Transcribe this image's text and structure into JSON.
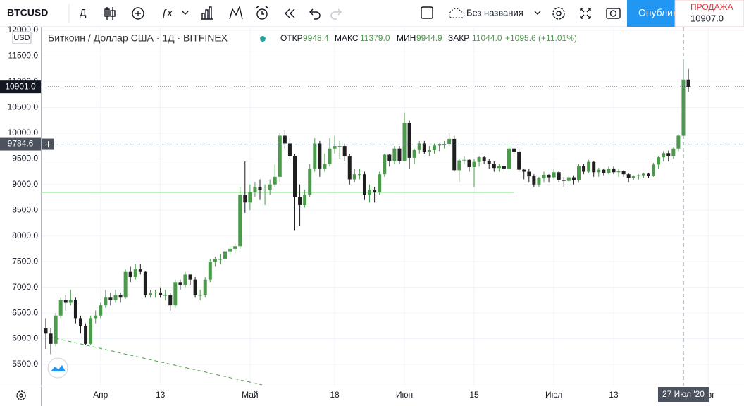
{
  "toolbar": {
    "symbol": "BTCUSD",
    "interval": "Д",
    "layout_name": "Без названия",
    "publish": "Опубликовать",
    "sell_label": "ПРОДАЖА",
    "sell_price": "10907.0"
  },
  "chart_data": {
    "type": "candlestick",
    "title": "Биткоин / Доллар США · 1Д · BITFINEX",
    "currency": "USD",
    "legend": {
      "open_label": "ОТКР",
      "open": "9948.4",
      "high_label": "МАКС",
      "high": "11379.0",
      "low_label": "МИН",
      "low": "9944.9",
      "close_label": "ЗАКР",
      "close": "11044.0",
      "change": "+1095.6 (+11.01%)"
    },
    "up_color": "#4c9a4c",
    "down_color": "#1f1f1f",
    "ylim": [
      5150,
      12020
    ],
    "yticks": [
      {
        "value": 5500,
        "label": "5500.0"
      },
      {
        "value": 6000,
        "label": "6000.0"
      },
      {
        "value": 6500,
        "label": "6500.0"
      },
      {
        "value": 7000,
        "label": "7000.0"
      },
      {
        "value": 7500,
        "label": "7500.0"
      },
      {
        "value": 8000,
        "label": "8000.0"
      },
      {
        "value": 8500,
        "label": "8500.0"
      },
      {
        "value": 9000,
        "label": "9000.0"
      },
      {
        "value": 9500,
        "label": "9500.0"
      },
      {
        "value": 10000,
        "label": "10000.0"
      },
      {
        "value": 10500,
        "label": "10500.0"
      },
      {
        "value": 11000,
        "label": "11000.0"
      },
      {
        "value": 11500,
        "label": "11500.0"
      },
      {
        "value": 12000,
        "label": "12000.0"
      }
    ],
    "xticks": [
      {
        "value": 11,
        "label": "Апр"
      },
      {
        "value": 23,
        "label": "13"
      },
      {
        "value": 41,
        "label": "Май"
      },
      {
        "value": 58,
        "label": "18"
      },
      {
        "value": 72,
        "label": "Июн"
      },
      {
        "value": 86,
        "label": "15"
      },
      {
        "value": 102,
        "label": "Июл"
      },
      {
        "value": 114,
        "label": "13"
      },
      {
        "value": 133,
        "label": "Авг"
      }
    ],
    "grid": true,
    "last_price": {
      "value": 10901.0,
      "label": "10901.0"
    },
    "level_line": 8850,
    "crosshair": {
      "x": 128,
      "x_label": "27 Июл '20",
      "y": {
        "value": 9784.6,
        "label": "9784.6"
      }
    },
    "ohlc": [
      [
        6200,
        6400,
        5800,
        6100
      ],
      [
        6100,
        6200,
        5700,
        5900
      ],
      [
        5900,
        6500,
        5850,
        6450
      ],
      [
        6450,
        6800,
        6400,
        6750
      ],
      [
        6750,
        6850,
        6550,
        6700
      ],
      [
        6700,
        6950,
        6650,
        6750
      ],
      [
        6750,
        6800,
        6300,
        6400
      ],
      [
        6400,
        6450,
        6100,
        6250
      ],
      [
        6250,
        6300,
        5880,
        5900
      ],
      [
        5900,
        6450,
        5880,
        6400
      ],
      [
        6400,
        6550,
        6300,
        6450
      ],
      [
        6450,
        6700,
        6400,
        6650
      ],
      [
        6650,
        6950,
        6600,
        6800
      ],
      [
        6800,
        6900,
        6650,
        6750
      ],
      [
        6750,
        6950,
        6700,
        6850
      ],
      [
        6850,
        6900,
        6700,
        6800
      ],
      [
        6800,
        7350,
        6780,
        7300
      ],
      [
        7300,
        7400,
        7100,
        7200
      ],
      [
        7200,
        7450,
        7150,
        7350
      ],
      [
        7350,
        7450,
        7250,
        7300
      ],
      [
        7300,
        7320,
        6800,
        6850
      ],
      [
        6850,
        6950,
        6800,
        6900
      ],
      [
        6900,
        6950,
        6800,
        6900
      ],
      [
        6900,
        7000,
        6800,
        6850
      ],
      [
        6850,
        6950,
        6750,
        6850
      ],
      [
        6850,
        6900,
        6550,
        6650
      ],
      [
        6650,
        7150,
        6600,
        7100
      ],
      [
        7100,
        7150,
        6950,
        7050
      ],
      [
        7050,
        7300,
        7000,
        7250
      ],
      [
        7250,
        7250,
        7050,
        7150
      ],
      [
        7150,
        7200,
        6800,
        6850
      ],
      [
        6850,
        6950,
        6750,
        6850
      ],
      [
        6850,
        7200,
        6800,
        7150
      ],
      [
        7150,
        7550,
        7100,
        7500
      ],
      [
        7500,
        7600,
        7400,
        7550
      ],
      [
        7550,
        7650,
        7450,
        7550
      ],
      [
        7550,
        7750,
        7500,
        7700
      ],
      [
        7700,
        7800,
        7650,
        7750
      ],
      [
        7750,
        7850,
        7650,
        7800
      ],
      [
        7800,
        8950,
        7750,
        8800
      ],
      [
        8800,
        9450,
        8450,
        8650
      ],
      [
        8650,
        9000,
        8500,
        8850
      ],
      [
        8850,
        9050,
        8750,
        8950
      ],
      [
        8950,
        9100,
        8700,
        8900
      ],
      [
        8900,
        9000,
        8600,
        8900
      ],
      [
        8900,
        9100,
        8800,
        9000
      ],
      [
        9000,
        9400,
        8950,
        9150
      ],
      [
        9150,
        10000,
        9050,
        9950
      ],
      [
        9950,
        10050,
        9700,
        9800
      ],
      [
        9800,
        9900,
        9500,
        9550
      ],
      [
        9550,
        9600,
        8100,
        8750
      ],
      [
        8750,
        9000,
        8200,
        8600
      ],
      [
        8600,
        8900,
        8550,
        8800
      ],
      [
        8800,
        9400,
        8750,
        9300
      ],
      [
        9300,
        9900,
        9250,
        9800
      ],
      [
        9800,
        9850,
        9150,
        9300
      ],
      [
        9300,
        9600,
        9250,
        9400
      ],
      [
        9400,
        9900,
        9350,
        9700
      ],
      [
        9700,
        9950,
        9600,
        9750
      ],
      [
        9750,
        9850,
        9500,
        9750
      ],
      [
        9750,
        9800,
        9450,
        9550
      ],
      [
        9550,
        9600,
        9000,
        9100
      ],
      [
        9100,
        9300,
        9050,
        9200
      ],
      [
        9200,
        9300,
        9100,
        9200
      ],
      [
        9200,
        9250,
        8700,
        8800
      ],
      [
        8800,
        9000,
        8650,
        8900
      ],
      [
        8900,
        8950,
        8650,
        8850
      ],
      [
        8850,
        9250,
        8800,
        9200
      ],
      [
        9200,
        9600,
        9150,
        9580
      ],
      [
        9580,
        9600,
        9350,
        9450
      ],
      [
        9450,
        9750,
        9400,
        9700
      ],
      [
        9700,
        9750,
        9400,
        9460
      ],
      [
        9460,
        10400,
        9450,
        10200
      ],
      [
        10200,
        10250,
        9300,
        9520
      ],
      [
        9520,
        9700,
        9400,
        9670
      ],
      [
        9670,
        9850,
        9600,
        9800
      ],
      [
        9800,
        9850,
        9600,
        9640
      ],
      [
        9640,
        9750,
        9550,
        9670
      ],
      [
        9670,
        9800,
        9600,
        9760
      ],
      [
        9760,
        9800,
        9650,
        9780
      ],
      [
        9780,
        9850,
        9700,
        9780
      ],
      [
        9780,
        10000,
        9750,
        9890
      ],
      [
        9890,
        9950,
        9250,
        9280
      ],
      [
        9280,
        9500,
        9050,
        9470
      ],
      [
        9470,
        9550,
        9400,
        9480
      ],
      [
        9480,
        9500,
        9250,
        9340
      ],
      [
        9340,
        9500,
        8950,
        9440
      ],
      [
        9440,
        9550,
        9350,
        9530
      ],
      [
        9530,
        9550,
        9400,
        9460
      ],
      [
        9460,
        9500,
        9300,
        9400
      ],
      [
        9400,
        9450,
        9250,
        9310
      ],
      [
        9310,
        9400,
        9250,
        9360
      ],
      [
        9360,
        9400,
        9250,
        9300
      ],
      [
        9300,
        9800,
        9280,
        9700
      ],
      [
        9700,
        9750,
        9600,
        9640
      ],
      [
        9640,
        9680,
        9250,
        9290
      ],
      [
        9290,
        9300,
        9100,
        9250
      ],
      [
        9250,
        9300,
        9050,
        9160
      ],
      [
        9160,
        9200,
        8950,
        9000
      ],
      [
        9000,
        9150,
        8950,
        9120
      ],
      [
        9120,
        9250,
        9050,
        9190
      ],
      [
        9190,
        9200,
        9050,
        9140
      ],
      [
        9140,
        9300,
        9100,
        9240
      ],
      [
        9240,
        9270,
        9050,
        9090
      ],
      [
        9090,
        9150,
        8950,
        9070
      ],
      [
        9070,
        9180,
        9050,
        9140
      ],
      [
        9140,
        9180,
        9000,
        9080
      ],
      [
        9080,
        9400,
        9050,
        9360
      ],
      [
        9360,
        9400,
        9200,
        9250
      ],
      [
        9250,
        9480,
        9220,
        9440
      ],
      [
        9440,
        9450,
        9150,
        9240
      ],
      [
        9240,
        9320,
        9150,
        9290
      ],
      [
        9290,
        9300,
        9180,
        9230
      ],
      [
        9230,
        9350,
        9200,
        9300
      ],
      [
        9300,
        9350,
        9200,
        9240
      ],
      [
        9240,
        9300,
        9150,
        9260
      ],
      [
        9260,
        9280,
        9150,
        9200
      ],
      [
        9200,
        9220,
        9050,
        9130
      ],
      [
        9130,
        9180,
        9080,
        9160
      ],
      [
        9160,
        9200,
        9100,
        9180
      ],
      [
        9180,
        9230,
        9130,
        9210
      ],
      [
        9210,
        9230,
        9130,
        9170
      ],
      [
        9170,
        9420,
        9150,
        9390
      ],
      [
        9390,
        9550,
        9300,
        9530
      ],
      [
        9530,
        9650,
        9450,
        9610
      ],
      [
        9610,
        9660,
        9450,
        9550
      ],
      [
        9550,
        9720,
        9500,
        9700
      ],
      [
        9700,
        9980,
        9650,
        9950
      ],
      [
        9948.4,
        11379.0,
        9944.9,
        11044.0
      ],
      [
        11044,
        11250,
        10800,
        10901
      ]
    ]
  }
}
